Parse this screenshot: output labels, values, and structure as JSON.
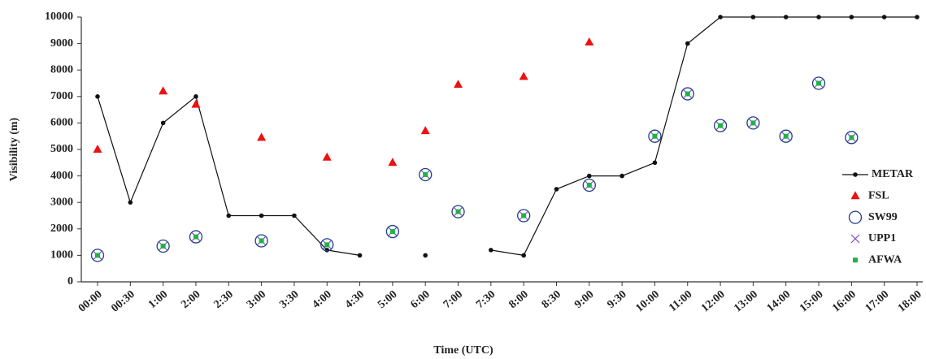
{
  "chart_data": {
    "type": "line",
    "x_label": "Time (UTC)",
    "y_label": "Visibility (m)",
    "categories": [
      "00:00",
      "00:30",
      "1:00",
      "2:00",
      "2:30",
      "3:00",
      "3:30",
      "4:00",
      "4:30",
      "5:00",
      "6:00",
      "7:00",
      "7:30",
      "8:00",
      "8:30",
      "9:00",
      "9:30",
      "10:00",
      "11:00",
      "12:00",
      "13:00",
      "14:00",
      "15:00",
      "16:00",
      "17:00",
      "18:00"
    ],
    "ylim": [
      0,
      10000
    ],
    "yticks": [
      0,
      1000,
      2000,
      3000,
      4000,
      5000,
      6000,
      7000,
      8000,
      9000,
      10000
    ],
    "grid": false,
    "legend": "right",
    "series": [
      {
        "name": "METAR",
        "color": "#111111",
        "marker": "dot",
        "line": true,
        "values": [
          7000,
          3000,
          6000,
          7000,
          2500,
          2500,
          2500,
          1200,
          1000,
          null,
          1000,
          null,
          1200,
          1000,
          3500,
          4000,
          4000,
          4500,
          9000,
          10000,
          10000,
          10000,
          10000,
          10000,
          10000,
          10000
        ]
      },
      {
        "name": "FSL",
        "color": "#ee1111",
        "marker": "triangle",
        "line": false,
        "values": [
          5000,
          null,
          7200,
          6700,
          null,
          5450,
          null,
          4700,
          null,
          4500,
          5700,
          7450,
          null,
          7750,
          null,
          9050,
          null,
          null,
          null,
          null,
          null,
          null,
          null,
          null,
          null,
          null
        ]
      },
      {
        "name": "SW99",
        "color": "#1f3d8a",
        "marker": "circle",
        "line": false,
        "values": [
          1000,
          null,
          1350,
          1700,
          null,
          1550,
          null,
          1400,
          null,
          1900,
          4050,
          2650,
          null,
          2500,
          null,
          3650,
          null,
          5500,
          7100,
          5900,
          6000,
          5500,
          7500,
          5450,
          null,
          null
        ]
      },
      {
        "name": "UPP1",
        "color": "#8a4fc4",
        "marker": "x",
        "line": false,
        "values": [
          1000,
          null,
          1350,
          1700,
          null,
          1550,
          null,
          1400,
          null,
          1900,
          4050,
          2650,
          null,
          2500,
          null,
          3650,
          null,
          5500,
          7100,
          5900,
          6000,
          5500,
          7500,
          5450,
          null,
          null
        ]
      },
      {
        "name": "AFWA",
        "color": "#22b04a",
        "marker": "square",
        "line": false,
        "values": [
          1000,
          null,
          1350,
          1700,
          null,
          1550,
          null,
          1400,
          null,
          1900,
          4050,
          2650,
          null,
          2500,
          null,
          3650,
          null,
          5500,
          7100,
          5900,
          6000,
          5500,
          7500,
          5450,
          null,
          null
        ]
      }
    ]
  }
}
